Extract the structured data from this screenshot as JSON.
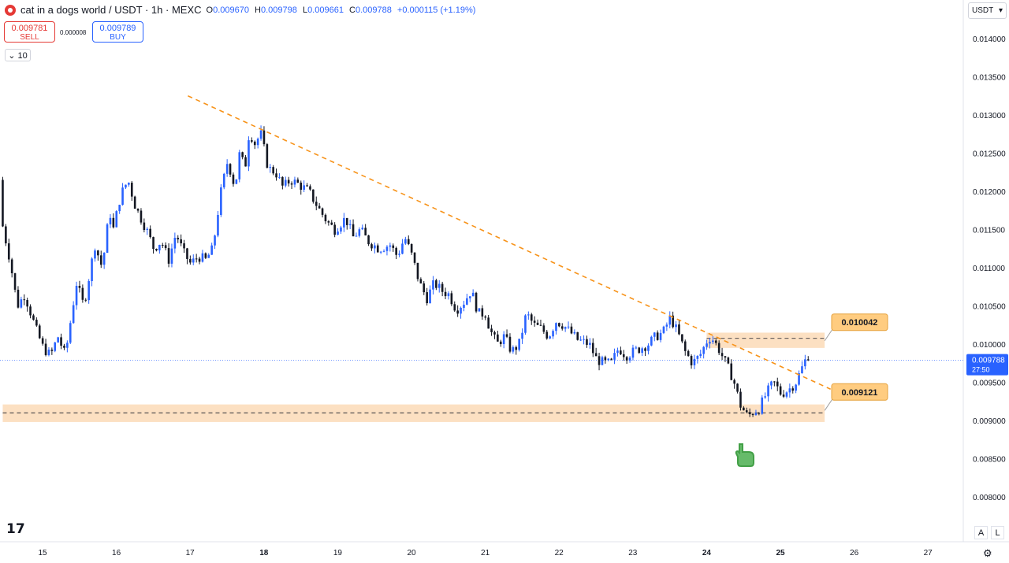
{
  "header": {
    "symbol": "cat in a dogs world / USDT · 1h · MEXC",
    "ohlc": [
      {
        "label": "O",
        "value": "0.009670"
      },
      {
        "label": "H",
        "value": "0.009798"
      },
      {
        "label": "L",
        "value": "0.009661"
      },
      {
        "label": "C",
        "value": "0.009788"
      }
    ],
    "change": "+0.000115 (+1.19%)"
  },
  "trade": {
    "sell_price": "0.009781",
    "sell_label": "SELL",
    "spread": "0.000008",
    "buy_price": "0.009789",
    "buy_label": "BUY"
  },
  "interval_label": "10",
  "currency": "USDT",
  "price_scale_labels": [
    "0.014000",
    "0.013500",
    "0.013000",
    "0.012500",
    "0.012000",
    "0.011500",
    "0.011000",
    "0.010500",
    "0.010000",
    "0.009500",
    "0.009000",
    "0.008500",
    "0.008000"
  ],
  "time_labels": [
    {
      "label": "15",
      "bold": false
    },
    {
      "label": "16",
      "bold": false
    },
    {
      "label": "17",
      "bold": false
    },
    {
      "label": "18",
      "bold": true
    },
    {
      "label": "19",
      "bold": false
    },
    {
      "label": "20",
      "bold": false
    },
    {
      "label": "21",
      "bold": false
    },
    {
      "label": "22",
      "bold": false
    },
    {
      "label": "23",
      "bold": false
    },
    {
      "label": "24",
      "bold": true
    },
    {
      "label": "25",
      "bold": true
    },
    {
      "label": "26",
      "bold": false
    },
    {
      "label": "27",
      "bold": false
    }
  ],
  "last_price": {
    "value": "0.009788",
    "countdown": "27:50"
  },
  "annotations": {
    "resistance_label": "0.010042",
    "support_label": "0.009121"
  },
  "bottom": {
    "auto_label": "A",
    "log_label": "L",
    "logo": "17"
  },
  "colors": {
    "up": "#2962ff",
    "down": "#131722",
    "trendline": "#f7931a",
    "zone": "#fce0c2",
    "callout": "#ffcc80",
    "hand": "#43a047"
  },
  "chart_data": {
    "type": "candlestick",
    "title": "cat in a dogs world / USDT · 1h · MEXC",
    "timeframe": "1h",
    "x_range_days": [
      14.5,
      27.5
    ],
    "ylim": [
      0.00775,
      0.01445
    ],
    "path": [
      [
        14.46,
        0.01215
      ],
      [
        14.5,
        0.01155
      ],
      [
        14.6,
        0.0111
      ],
      [
        14.7,
        0.0105
      ],
      [
        14.8,
        0.01065
      ],
      [
        14.95,
        0.0102
      ],
      [
        15.05,
        0.00995
      ],
      [
        15.15,
        0.00985
      ],
      [
        15.25,
        0.0101
      ],
      [
        15.35,
        0.00985
      ],
      [
        15.5,
        0.0108
      ],
      [
        15.6,
        0.0105
      ],
      [
        15.75,
        0.0113
      ],
      [
        15.85,
        0.011
      ],
      [
        15.95,
        0.01175
      ],
      [
        16.0,
        0.0115
      ],
      [
        16.1,
        0.01195
      ],
      [
        16.2,
        0.01215
      ],
      [
        16.3,
        0.0118
      ],
      [
        16.45,
        0.0115
      ],
      [
        16.55,
        0.01125
      ],
      [
        16.65,
        0.01135
      ],
      [
        16.75,
        0.0111
      ],
      [
        16.85,
        0.01145
      ],
      [
        16.95,
        0.0112
      ],
      [
        17.05,
        0.01105
      ],
      [
        17.15,
        0.01115
      ],
      [
        17.25,
        0.0111
      ],
      [
        17.35,
        0.01125
      ],
      [
        17.45,
        0.01195
      ],
      [
        17.55,
        0.0124
      ],
      [
        17.65,
        0.01205
      ],
      [
        17.72,
        0.01255
      ],
      [
        17.78,
        0.01225
      ],
      [
        17.85,
        0.01285
      ],
      [
        17.9,
        0.0126
      ],
      [
        18.0,
        0.01275
      ],
      [
        18.1,
        0.0123
      ],
      [
        18.2,
        0.01225
      ],
      [
        18.3,
        0.01205
      ],
      [
        18.4,
        0.01215
      ],
      [
        18.5,
        0.0121
      ],
      [
        18.65,
        0.012
      ],
      [
        18.8,
        0.01175
      ],
      [
        18.9,
        0.0116
      ],
      [
        19.0,
        0.0115
      ],
      [
        19.15,
        0.01165
      ],
      [
        19.25,
        0.0114
      ],
      [
        19.35,
        0.0115
      ],
      [
        19.45,
        0.01135
      ],
      [
        19.6,
        0.01125
      ],
      [
        19.75,
        0.0113
      ],
      [
        19.85,
        0.01115
      ],
      [
        19.95,
        0.0114
      ],
      [
        20.05,
        0.01115
      ],
      [
        20.15,
        0.0108
      ],
      [
        20.25,
        0.0106
      ],
      [
        20.35,
        0.0108
      ],
      [
        20.45,
        0.0107
      ],
      [
        20.55,
        0.01065
      ],
      [
        20.65,
        0.01045
      ],
      [
        20.75,
        0.01055
      ],
      [
        20.85,
        0.0107
      ],
      [
        20.95,
        0.0104
      ],
      [
        21.05,
        0.0104
      ],
      [
        21.1,
        0.0102
      ],
      [
        21.2,
        0.01
      ],
      [
        21.3,
        0.0101
      ],
      [
        21.4,
        0.0099
      ],
      [
        21.5,
        0.01
      ],
      [
        21.6,
        0.0104
      ],
      [
        21.7,
        0.01025
      ],
      [
        21.8,
        0.0102
      ],
      [
        21.9,
        0.0101
      ],
      [
        22.0,
        0.0103
      ],
      [
        22.1,
        0.01025
      ],
      [
        22.2,
        0.01015
      ],
      [
        22.3,
        0.01005
      ],
      [
        22.45,
        0.01
      ],
      [
        22.55,
        0.0098
      ],
      [
        22.65,
        0.00975
      ],
      [
        22.75,
        0.00975
      ],
      [
        22.85,
        0.00995
      ],
      [
        22.95,
        0.00985
      ],
      [
        23.05,
        0.0099
      ],
      [
        23.15,
        0.00995
      ],
      [
        23.25,
        0.01
      ],
      [
        23.35,
        0.0101
      ],
      [
        23.45,
        0.01015
      ],
      [
        23.55,
        0.01035
      ],
      [
        23.65,
        0.01015
      ],
      [
        23.75,
        0.0099
      ],
      [
        23.85,
        0.00975
      ],
      [
        23.95,
        0.00985
      ],
      [
        24.05,
        0.01005
      ],
      [
        24.1,
        0.0101
      ],
      [
        24.2,
        0.00995
      ],
      [
        24.3,
        0.00975
      ],
      [
        24.4,
        0.00955
      ],
      [
        24.5,
        0.0092
      ],
      [
        24.6,
        0.00905
      ],
      [
        24.65,
        0.0091
      ],
      [
        24.75,
        0.00915
      ],
      [
        24.85,
        0.00935
      ],
      [
        24.95,
        0.0095
      ],
      [
        25.05,
        0.00935
      ],
      [
        25.15,
        0.0094
      ],
      [
        25.25,
        0.0095
      ],
      [
        25.38,
        0.00979
      ]
    ],
    "trendline": {
      "from": [
        16.97,
        0.01325
      ],
      "to": [
        25.68,
        0.00941
      ],
      "style": "dashed",
      "color": "#f7931a"
    },
    "zones": [
      {
        "from_day": 24.0,
        "to_day": 25.6,
        "low": 0.00995,
        "high": 0.01015,
        "level": 0.010075,
        "label": "0.010042"
      },
      {
        "from_day": 14.46,
        "to_day": 25.6,
        "low": 0.00898,
        "high": 0.00921,
        "level": 0.0091,
        "label": "0.009121"
      }
    ],
    "last_price_line": 0.009788,
    "grid": false,
    "legend": "none"
  }
}
